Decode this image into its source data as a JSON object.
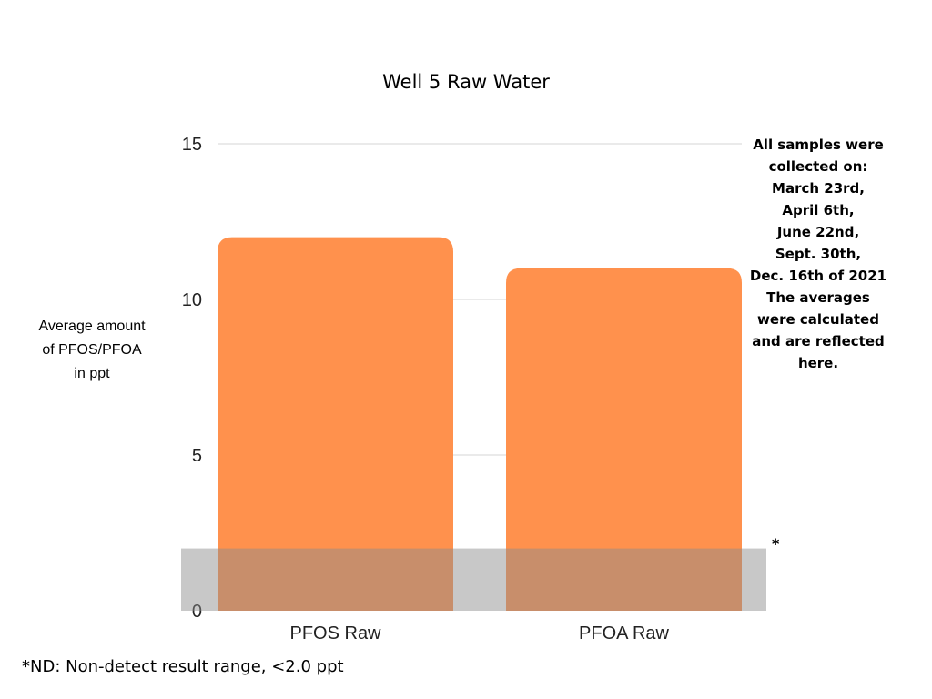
{
  "chart_data": {
    "type": "bar",
    "title": "Well 5 Raw Water",
    "ylabel": "Average amount\nof PFOS/PFOA\nin ppt",
    "xlabel": "",
    "categories": [
      "PFOS Raw",
      "PFOA Raw"
    ],
    "values": [
      12,
      11
    ],
    "ylim": [
      0,
      15
    ],
    "yticks": [
      0,
      5,
      10,
      15
    ],
    "grid": true,
    "bar_color": "#FF914D",
    "nd_band": {
      "from": 0,
      "to": 2.0,
      "color": "#8C8C8C",
      "marker": "*"
    },
    "note": "All samples were\ncollected on:\nMarch 23rd,\nApril 6th,\nJune 22nd,\nSept. 30th,\nDec. 16th of 2021\nThe averages\nwere calculated\nand are reflected\nhere.",
    "footnote": "*ND: Non-detect result range, <2.0 ppt"
  }
}
